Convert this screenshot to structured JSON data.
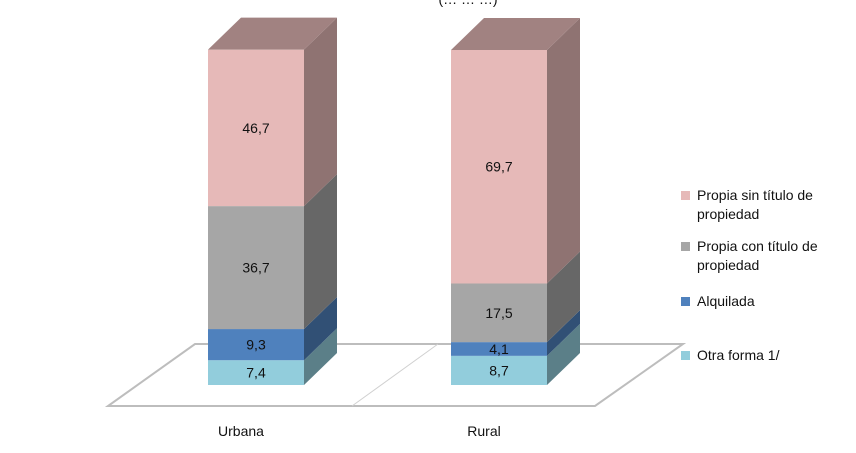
{
  "chart_data": {
    "type": "bar",
    "stacked": true,
    "three_d": true,
    "title_fragment": "(… … …)",
    "categories": [
      "Urbana",
      "Rural"
    ],
    "series": [
      {
        "name": "Otra forma 1/",
        "values": [
          7.4,
          8.7
        ],
        "labels": [
          "7,4",
          "8,7"
        ],
        "color": "#92cddc"
      },
      {
        "name": "Alquilada",
        "values": [
          9.3,
          4.1
        ],
        "labels": [
          "9,3",
          "4,1"
        ],
        "color": "#4f81bd"
      },
      {
        "name": "Propia con título de propiedad",
        "values": [
          36.7,
          17.5
        ],
        "labels": [
          "36,7",
          "17,5"
        ],
        "color": "#a6a6a6"
      },
      {
        "name": "Propia sin título de propiedad",
        "values": [
          46.7,
          69.7
        ],
        "labels": [
          "46,7",
          "69,7"
        ],
        "color": "#e6b9b8"
      }
    ],
    "legend": {
      "position": "right",
      "entries": [
        {
          "lines": [
            "Propia sin título de",
            "propiedad"
          ],
          "color": "#e6b9b8"
        },
        {
          "lines": [
            "Propia con título de",
            "propiedad"
          ],
          "color": "#a6a6a6"
        },
        {
          "lines": [
            "Alquilada"
          ],
          "color": "#4f81bd"
        },
        {
          "lines": [
            "Otra forma 1/"
          ],
          "color": "#92cddc"
        }
      ]
    },
    "ylim": [
      0,
      100
    ],
    "grid": false
  }
}
